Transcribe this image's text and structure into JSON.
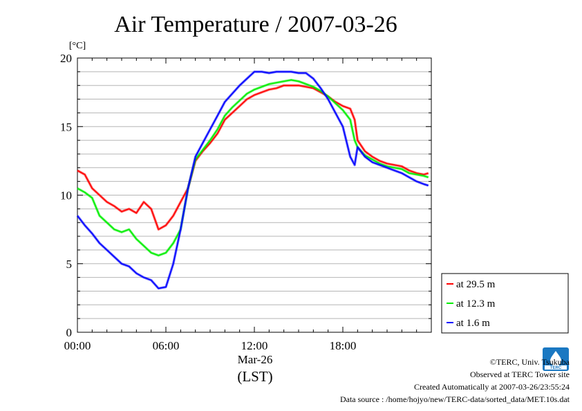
{
  "chart_data": {
    "type": "line",
    "title": "Air Temperature / 2007-03-26",
    "ylabel": "[°C]",
    "xlabel_date": "Mar-26",
    "xlabel_unit": "(LST)",
    "xlim": [
      0,
      24
    ],
    "ylim": [
      0,
      20
    ],
    "x_ticks": [
      {
        "value": 0,
        "label": "00:00"
      },
      {
        "value": 6,
        "label": "06:00"
      },
      {
        "value": 12,
        "label": "12:00"
      },
      {
        "value": 18,
        "label": "18:00"
      }
    ],
    "y_ticks": [
      {
        "value": 0,
        "label": "0"
      },
      {
        "value": 5,
        "label": "5"
      },
      {
        "value": 10,
        "label": "10"
      },
      {
        "value": 15,
        "label": "15"
      },
      {
        "value": 20,
        "label": "20"
      }
    ],
    "grid": true,
    "legend_position": "right",
    "series": [
      {
        "name": "at 29.5 m",
        "color": "#ff0000",
        "x": [
          0,
          0.5,
          1,
          1.5,
          2,
          2.5,
          3,
          3.5,
          4,
          4.5,
          5,
          5.5,
          6,
          6.5,
          7,
          7.5,
          8,
          8.5,
          9,
          9.5,
          10,
          10.5,
          11,
          11.5,
          12,
          12.5,
          13,
          13.5,
          14,
          14.5,
          15,
          15.5,
          16,
          16.5,
          17,
          17.5,
          18,
          18.5,
          18.8,
          19,
          19.5,
          20,
          20.5,
          21,
          21.5,
          22,
          22.5,
          23,
          23.5,
          23.8
        ],
        "y": [
          11.8,
          11.5,
          10.5,
          10.0,
          9.5,
          9.2,
          8.8,
          9.0,
          8.7,
          9.5,
          9.0,
          7.5,
          7.8,
          8.5,
          9.5,
          10.5,
          12.5,
          13.2,
          13.8,
          14.5,
          15.5,
          16.0,
          16.5,
          17.0,
          17.3,
          17.5,
          17.7,
          17.8,
          18.0,
          18.0,
          18.0,
          17.9,
          17.8,
          17.5,
          17.2,
          16.8,
          16.5,
          16.3,
          15.5,
          14.0,
          13.2,
          12.8,
          12.5,
          12.3,
          12.2,
          12.1,
          11.8,
          11.6,
          11.5,
          11.6
        ]
      },
      {
        "name": "at 12.3 m",
        "color": "#00ee00",
        "x": [
          0,
          0.5,
          1,
          1.5,
          2,
          2.5,
          3,
          3.5,
          4,
          4.5,
          5,
          5.5,
          6,
          6.5,
          7,
          7.5,
          8,
          8.5,
          9,
          9.5,
          10,
          10.5,
          11,
          11.5,
          12,
          12.5,
          13,
          13.5,
          14,
          14.5,
          15,
          15.5,
          16,
          16.5,
          17,
          17.5,
          18,
          18.5,
          18.8,
          19,
          19.5,
          20,
          20.5,
          21,
          21.5,
          22,
          22.5,
          23,
          23.5,
          23.8
        ],
        "y": [
          10.5,
          10.2,
          9.8,
          8.5,
          8.0,
          7.5,
          7.3,
          7.5,
          6.8,
          6.3,
          5.8,
          5.6,
          5.8,
          6.5,
          7.5,
          10.5,
          12.6,
          13.3,
          14.0,
          14.8,
          15.8,
          16.4,
          16.9,
          17.4,
          17.7,
          17.9,
          18.1,
          18.2,
          18.3,
          18.4,
          18.3,
          18.1,
          17.9,
          17.6,
          17.2,
          16.7,
          16.2,
          15.5,
          14.0,
          13.5,
          12.9,
          12.6,
          12.3,
          12.1,
          12.0,
          11.9,
          11.6,
          11.5,
          11.4,
          11.3
        ]
      },
      {
        "name": "at 1.6 m",
        "color": "#0000ff",
        "x": [
          0,
          0.5,
          1,
          1.5,
          2,
          2.5,
          3,
          3.5,
          4,
          4.5,
          5,
          5.5,
          6,
          6.5,
          7,
          7.5,
          8,
          8.5,
          9,
          9.5,
          10,
          10.5,
          11,
          11.5,
          12,
          12.5,
          13,
          13.5,
          14,
          14.5,
          15,
          15.5,
          16,
          16.5,
          17,
          17.5,
          18,
          18.5,
          18.8,
          19,
          19.5,
          20,
          20.5,
          21,
          21.5,
          22,
          22.5,
          23,
          23.5,
          23.8
        ],
        "y": [
          8.5,
          7.8,
          7.2,
          6.5,
          6.0,
          5.5,
          5.0,
          4.8,
          4.3,
          4.0,
          3.8,
          3.2,
          3.3,
          5.0,
          7.5,
          10.5,
          12.8,
          13.8,
          14.8,
          15.8,
          16.8,
          17.4,
          18.0,
          18.5,
          19.0,
          19.0,
          18.9,
          19.0,
          19.0,
          19.0,
          18.9,
          18.9,
          18.5,
          17.8,
          17.0,
          16.0,
          15.0,
          12.8,
          12.2,
          13.5,
          12.8,
          12.4,
          12.2,
          12.0,
          11.8,
          11.6,
          11.3,
          11.0,
          10.8,
          10.7
        ]
      }
    ]
  },
  "footer": {
    "copyright": "©TERC, Univ. Tsukuba",
    "site": "Observed at TERC Tower site",
    "created": "Created Automatically at 2007-03-26/23:55:24",
    "source": "Data source : /home/hojyo/new/TERC-data/sorted_data/MET.10s.dat"
  },
  "logo_text": "TERC"
}
